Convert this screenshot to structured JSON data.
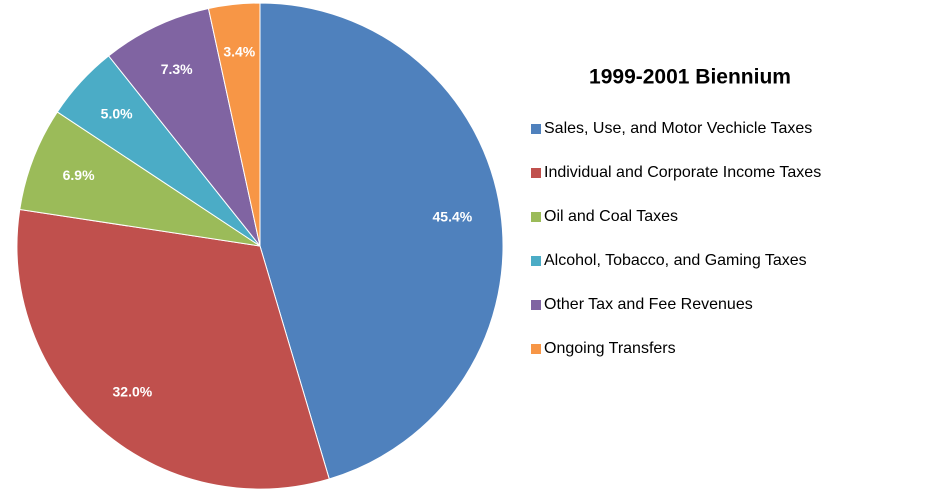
{
  "chart_data": {
    "type": "pie",
    "title": "1999-2001 Biennium",
    "categories": [
      "Sales, Use, and Motor Vechicle Taxes",
      "Individual and Corporate Income Taxes",
      "Oil and Coal Taxes",
      "Alcohol, Tobacco, and Gaming Taxes",
      "Other Tax and Fee Revenues",
      "Ongoing Transfers"
    ],
    "values": [
      45.4,
      32.0,
      6.9,
      5.0,
      7.3,
      3.4
    ],
    "value_labels": [
      "45.4%",
      "32.0%",
      "6.9%",
      "5.0%",
      "7.3%",
      "3.4%"
    ],
    "colors": [
      "#4f81bd",
      "#c0504d",
      "#9bbb59",
      "#4bacc6",
      "#8064a2",
      "#f79646"
    ],
    "legend": "right"
  }
}
